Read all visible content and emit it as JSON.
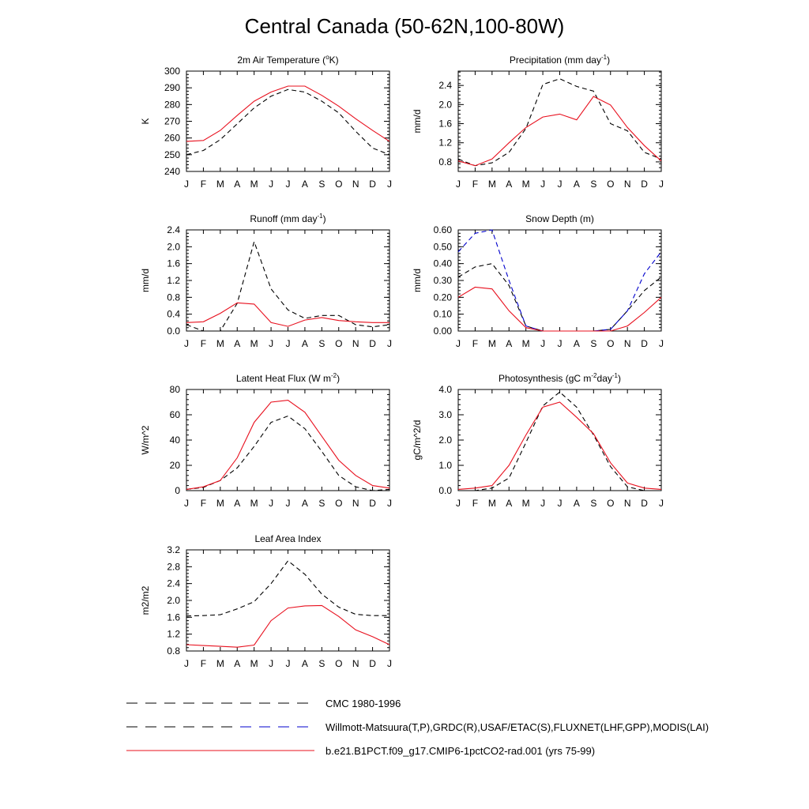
{
  "title": "Central Canada (50-62N,100-80W)",
  "months": [
    "J",
    "F",
    "M",
    "A",
    "M",
    "J",
    "J",
    "A",
    "S",
    "O",
    "N",
    "D",
    "J"
  ],
  "legend": [
    {
      "label": "CMC 1980-1996",
      "style": "dashed",
      "color": "#000000",
      "color2": "#000000"
    },
    {
      "label": "Willmott-Matsuura(T,P),GRDC(R),USAF/ETAC(S),FLUXNET(LHF,GPP),MODIS(LAI)",
      "style": "dashed",
      "color": "#000000",
      "color2": "#0000cc"
    },
    {
      "label": "b.e21.B1PCT.f09_g17.CMIP6-1pctCO2-rad.001 (yrs 75-99)",
      "style": "solid",
      "color": "#e8101e",
      "color2": "#e8101e"
    }
  ],
  "chart_data": [
    {
      "type": "line",
      "title": "2m Air Temperature (°K)",
      "title_parts": [
        "2m Air Temperature (",
        "o",
        "K)"
      ],
      "ylabel": "K",
      "ylim": [
        240,
        300
      ],
      "yticks": [
        240,
        250,
        260,
        270,
        280,
        290,
        300
      ],
      "ytick_labels": [
        "240",
        "250",
        "260",
        "270",
        "280",
        "290",
        "300"
      ],
      "series": [
        {
          "values": [
            250,
            252.5,
            259,
            268.5,
            278,
            285,
            289,
            287.5,
            282,
            275,
            264,
            254,
            250
          ],
          "color": "#000000",
          "style": "dashed"
        },
        {
          "values": [
            258,
            258.5,
            264.5,
            273.5,
            282,
            287.5,
            291,
            291,
            285.5,
            279,
            271.5,
            264.5,
            258
          ],
          "color": "#e8101e",
          "style": "solid"
        }
      ]
    },
    {
      "type": "line",
      "title": "Precipitation (mm day-1)",
      "title_parts": [
        "Precipitation (mm day",
        "-1",
        ")"
      ],
      "ylabel": "mm/d",
      "ylim": [
        0.6,
        2.7
      ],
      "yticks": [
        0.8,
        1.2,
        1.6,
        2.0,
        2.4
      ],
      "ytick_labels": [
        "0.8",
        "1.2",
        "1.6",
        "2.0",
        "2.4"
      ],
      "series": [
        {
          "values": [
            0.86,
            0.72,
            0.78,
            1.0,
            1.5,
            2.42,
            2.54,
            2.38,
            2.28,
            1.6,
            1.45,
            1.0,
            0.86
          ],
          "color": "#000000",
          "style": "dashed"
        },
        {
          "values": [
            0.82,
            0.72,
            0.86,
            1.2,
            1.52,
            1.74,
            1.8,
            1.68,
            2.17,
            1.99,
            1.52,
            1.14,
            0.82
          ],
          "color": "#e8101e",
          "style": "solid"
        }
      ]
    },
    {
      "type": "line",
      "title": "Runoff (mm day-1)",
      "title_parts": [
        "Runoff (mm day",
        "-1",
        ")"
      ],
      "ylabel": "mm/d",
      "ylim": [
        0,
        2.4
      ],
      "yticks": [
        0.0,
        0.4,
        0.8,
        1.2,
        1.6,
        2.0,
        2.4
      ],
      "ytick_labels": [
        "0.0",
        "0.4",
        "0.8",
        "1.2",
        "1.6",
        "2.0",
        "2.4"
      ],
      "series": [
        {
          "values": [
            0.15,
            0.0,
            0.0,
            0.66,
            2.12,
            1.0,
            0.5,
            0.3,
            0.37,
            0.37,
            0.15,
            0.1,
            0.15
          ],
          "color": "#000000",
          "style": "dashed"
        },
        {
          "values": [
            0.2,
            0.22,
            0.42,
            0.67,
            0.64,
            0.2,
            0.11,
            0.26,
            0.32,
            0.25,
            0.22,
            0.2,
            0.2
          ],
          "color": "#e8101e",
          "style": "solid"
        }
      ]
    },
    {
      "type": "line",
      "title": "Snow Depth (m)",
      "title_parts": [
        "Snow Depth (m)",
        "",
        ""
      ],
      "ylabel": "mm/d",
      "ylim": [
        0,
        0.6
      ],
      "yticks": [
        0.0,
        0.1,
        0.2,
        0.3,
        0.4,
        0.5,
        0.6
      ],
      "ytick_labels": [
        "0.00",
        "0.10",
        "0.20",
        "0.30",
        "0.40",
        "0.50",
        "0.60"
      ],
      "series": [
        {
          "values": [
            0.32,
            0.38,
            0.4,
            0.27,
            0.03,
            0.0,
            0.0,
            0.0,
            0.0,
            0.01,
            0.12,
            0.24,
            0.32
          ],
          "color": "#000000",
          "style": "dashed"
        },
        {
          "values": [
            0.47,
            0.58,
            0.6,
            0.3,
            0.03,
            0.0,
            0.0,
            0.0,
            0.0,
            0.01,
            0.12,
            0.34,
            0.47
          ],
          "color": "#0000cc",
          "style": "dashed"
        },
        {
          "values": [
            0.2,
            0.26,
            0.25,
            0.12,
            0.02,
            0.0,
            0.0,
            0.0,
            0.0,
            0.0,
            0.03,
            0.11,
            0.2
          ],
          "color": "#e8101e",
          "style": "solid"
        }
      ]
    },
    {
      "type": "line",
      "title": "Latent Heat Flux (W m-2)",
      "title_parts": [
        "Latent Heat Flux (W m",
        "-2",
        ")"
      ],
      "ylabel": "W/m^2",
      "ylim": [
        0,
        80
      ],
      "yticks": [
        0,
        20,
        40,
        60,
        80
      ],
      "ytick_labels": [
        "0",
        "20",
        "40",
        "60",
        "80"
      ],
      "series": [
        {
          "values": [
            1,
            2.5,
            8,
            18,
            35,
            54,
            59,
            49,
            31,
            12,
            3,
            0,
            1
          ],
          "color": "#000000",
          "style": "dashed"
        },
        {
          "values": [
            1,
            3,
            8,
            26,
            54,
            70,
            71.5,
            62,
            43,
            24,
            12,
            4,
            2
          ],
          "color": "#e8101e",
          "style": "solid"
        }
      ]
    },
    {
      "type": "line",
      "title": "Photosynthesis (gC m-2day-1)",
      "title_parts": [
        "Photosynthesis (gC m",
        "-2",
        "day",
        "-1",
        ")"
      ],
      "ylabel": "gC/m^2/d",
      "ylim": [
        0,
        4
      ],
      "yticks": [
        0.0,
        1.0,
        2.0,
        3.0,
        4.0
      ],
      "ytick_labels": [
        "0.0",
        "1.0",
        "2.0",
        "3.0",
        "4.0"
      ],
      "series": [
        {
          "values": [
            0.0,
            0.0,
            0.1,
            0.5,
            1.9,
            3.35,
            3.9,
            3.3,
            2.2,
            0.95,
            0.15,
            0.0,
            0.0
          ],
          "color": "#000000",
          "style": "dashed"
        },
        {
          "values": [
            0.05,
            0.1,
            0.2,
            1.0,
            2.2,
            3.3,
            3.5,
            2.9,
            2.25,
            1.1,
            0.3,
            0.1,
            0.05
          ],
          "color": "#e8101e",
          "style": "solid"
        }
      ]
    },
    {
      "type": "line",
      "title": "Leaf Area Index",
      "title_parts": [
        "Leaf Area Index",
        "",
        ""
      ],
      "ylabel": "m2/m2",
      "ylim": [
        0.8,
        3.2
      ],
      "yticks": [
        0.8,
        1.2,
        1.6,
        2.0,
        2.4,
        2.8,
        3.2
      ],
      "ytick_labels": [
        "0.8",
        "1.2",
        "1.6",
        "2.0",
        "2.4",
        "2.8",
        "3.2"
      ],
      "series": [
        {
          "values": [
            1.63,
            1.64,
            1.66,
            1.8,
            1.97,
            2.4,
            2.94,
            2.62,
            2.15,
            1.84,
            1.67,
            1.64,
            1.64
          ],
          "color": "#000000",
          "style": "dashed"
        },
        {
          "values": [
            0.95,
            0.93,
            0.91,
            0.89,
            0.94,
            1.52,
            1.82,
            1.87,
            1.88,
            1.62,
            1.3,
            1.14,
            0.95
          ],
          "color": "#e8101e",
          "style": "solid"
        }
      ]
    }
  ]
}
